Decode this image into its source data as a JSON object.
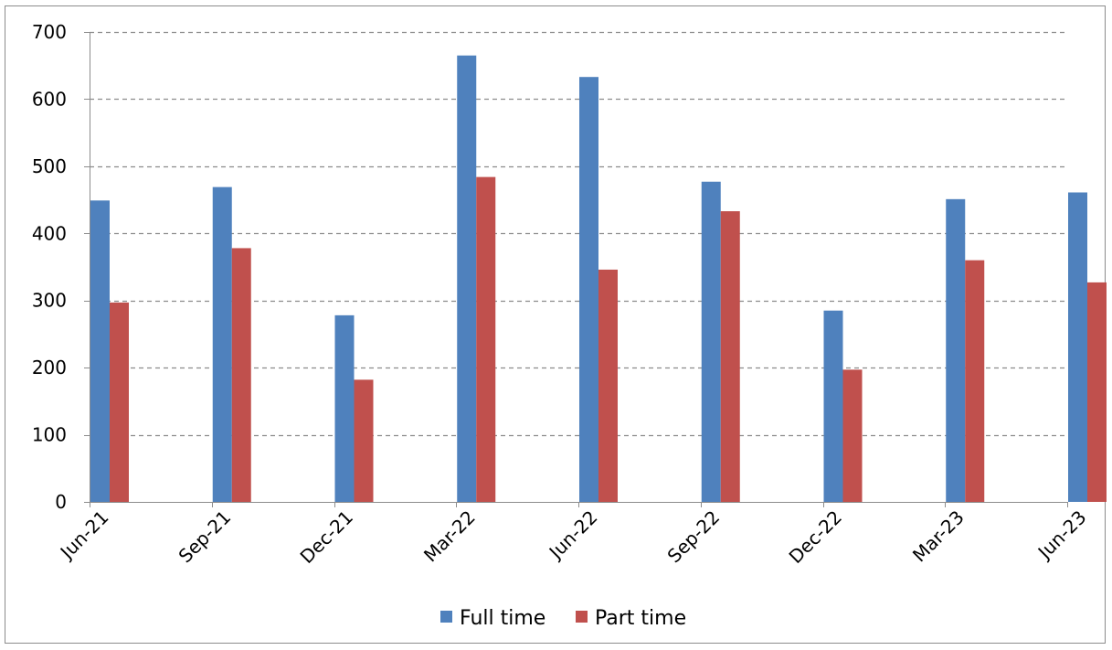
{
  "chart_data": {
    "type": "bar",
    "title": "",
    "xlabel": "",
    "ylabel": "",
    "categories": [
      "Jun-21",
      "Sep-21",
      "Dec-21",
      "Mar-22",
      "Jun-22",
      "Sep-22",
      "Dec-22",
      "Mar-23",
      "Jun-23"
    ],
    "series": [
      {
        "name": "Full time",
        "color": "#4f81bd",
        "values": [
          449,
          469,
          278,
          665,
          633,
          477,
          285,
          451,
          461
        ]
      },
      {
        "name": "Part time",
        "color": "#c0504d",
        "values": [
          297,
          378,
          182,
          484,
          346,
          433,
          197,
          360,
          327
        ]
      }
    ],
    "ylim": [
      0,
      700
    ],
    "yticks": [
      0,
      100,
      200,
      300,
      400,
      500,
      600,
      700
    ],
    "grid": true,
    "grid_style": "dashed",
    "legend_position": "bottom"
  }
}
